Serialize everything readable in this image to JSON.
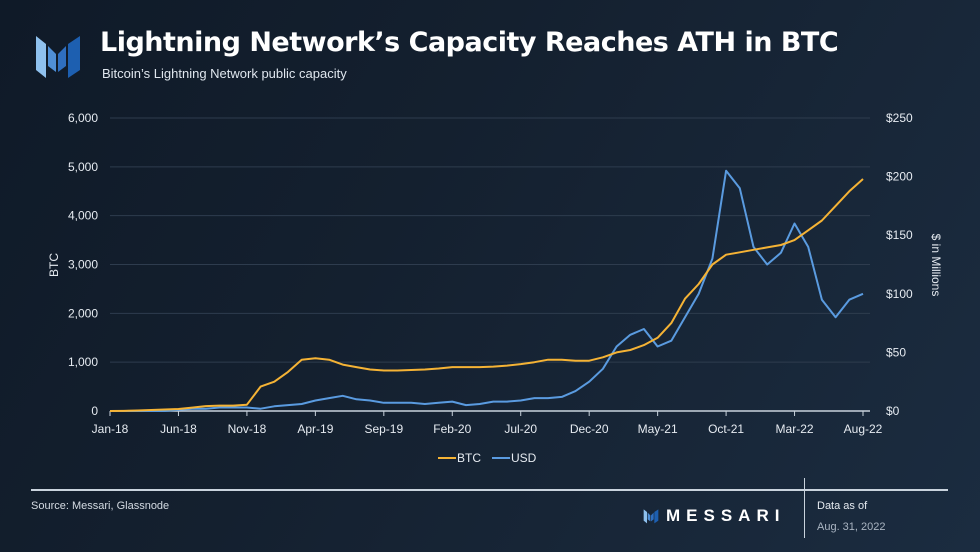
{
  "header": {
    "title": "Lightning Network’s Capacity Reaches ATH in BTC",
    "subtitle": "Bitcoin’s Lightning Network public capacity"
  },
  "footer": {
    "source": "Source: Messari, Glassnode",
    "brand": "MESSARI",
    "data_as_of_label": "Data as of",
    "data_as_of_date": "Aug. 31, 2022"
  },
  "colors": {
    "btc": "#f5b335",
    "usd": "#5a9be0",
    "grid": "#2e3c4e"
  },
  "chart_data": {
    "type": "line",
    "title": "Lightning Network’s Capacity Reaches ATH in BTC",
    "ylabel": "BTC",
    "y2label": "$ in Millions",
    "ylim": [
      0,
      6000
    ],
    "y2lim": [
      0,
      250
    ],
    "yticks": [
      "0",
      "1,000",
      "2,000",
      "3,000",
      "4,000",
      "5,000",
      "6,000"
    ],
    "y2ticks": [
      "$0",
      "$50",
      "$100",
      "$150",
      "$200",
      "$250"
    ],
    "xticks": [
      {
        "label": "Jan-18",
        "m": 0
      },
      {
        "label": "Jun-18",
        "m": 5
      },
      {
        "label": "Nov-18",
        "m": 10
      },
      {
        "label": "Apr-19",
        "m": 15
      },
      {
        "label": "Sep-19",
        "m": 20
      },
      {
        "label": "Feb-20",
        "m": 25
      },
      {
        "label": "Jul-20",
        "m": 30
      },
      {
        "label": "Dec-20",
        "m": 35
      },
      {
        "label": "May-21",
        "m": 40
      },
      {
        "label": "Oct-21",
        "m": 45
      },
      {
        "label": "Mar-22",
        "m": 50
      },
      {
        "label": "Aug-22",
        "m": 55
      }
    ],
    "legend": {
      "position": "bottom",
      "items": [
        "BTC",
        "USD"
      ]
    },
    "series": [
      {
        "name": "BTC",
        "axis": "left",
        "values": [
          0,
          2,
          10,
          20,
          30,
          40,
          70,
          100,
          110,
          110,
          130,
          500,
          600,
          800,
          1050,
          1080,
          1050,
          950,
          900,
          850,
          830,
          830,
          840,
          850,
          870,
          900,
          900,
          900,
          910,
          930,
          960,
          1000,
          1050,
          1050,
          1030,
          1030,
          1100,
          1200,
          1250,
          1350,
          1500,
          1800,
          2300,
          2600,
          3000,
          3200,
          3250,
          3300,
          3350,
          3400,
          3500,
          3700,
          3900,
          4200,
          4500,
          4750
        ]
      },
      {
        "name": "USD",
        "axis": "right",
        "values": [
          0,
          0,
          0,
          0,
          0,
          1,
          2,
          2,
          3,
          3,
          3,
          2,
          4,
          5,
          6,
          9,
          11,
          13,
          10,
          9,
          7,
          7,
          7,
          6,
          7,
          8,
          5,
          6,
          8,
          8,
          9,
          11,
          11,
          12,
          17,
          25,
          36,
          55,
          65,
          70,
          55,
          60,
          80,
          100,
          130,
          205,
          190,
          140,
          125,
          135,
          160,
          140,
          95,
          80,
          95,
          100
        ]
      }
    ]
  }
}
